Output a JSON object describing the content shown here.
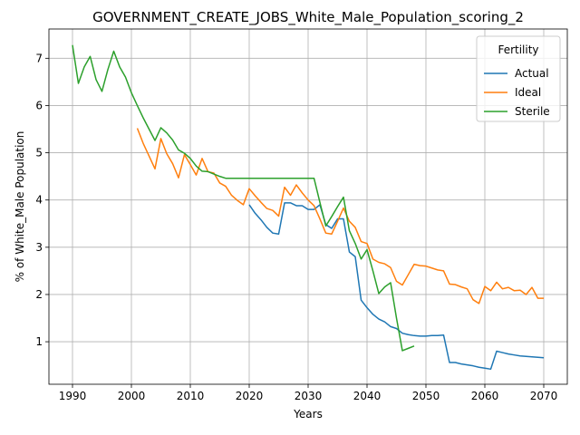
{
  "chart_data": {
    "type": "line",
    "title": "GOVERNMENT_CREATE_JOBS_White_Male_Population_scoring_2",
    "xlabel": "Years",
    "ylabel": "% of White_Male Population",
    "xlim": [
      1986,
      2074
    ],
    "ylim": [
      0.1,
      7.62
    ],
    "xticks": [
      1990,
      2000,
      2010,
      2020,
      2030,
      2040,
      2050,
      2060,
      2070
    ],
    "yticks": [
      1,
      2,
      3,
      4,
      5,
      6,
      7
    ],
    "grid": true,
    "legend": {
      "title": "Fertility",
      "placement": "top-right"
    },
    "series": [
      {
        "name": "Actual",
        "color": "#1f77b4",
        "x": [
          2020,
          2021,
          2022,
          2023,
          2024,
          2025,
          2026,
          2027,
          2028,
          2029,
          2030,
          2031,
          2032,
          2033,
          2034,
          2035,
          2036,
          2037,
          2038,
          2039,
          2040,
          2041,
          2042,
          2043,
          2044,
          2045,
          2046,
          2047,
          2048,
          2049,
          2050,
          2051,
          2052,
          2053,
          2054,
          2055,
          2056,
          2057,
          2058,
          2059,
          2060,
          2061,
          2062,
          2063,
          2064,
          2065,
          2066,
          2067,
          2068,
          2069,
          2070
        ],
        "y": [
          3.9,
          3.72,
          3.58,
          3.42,
          3.3,
          3.28,
          3.94,
          3.94,
          3.88,
          3.88,
          3.8,
          3.8,
          3.9,
          3.48,
          3.4,
          3.6,
          3.6,
          2.9,
          2.8,
          1.88,
          1.72,
          1.58,
          1.48,
          1.42,
          1.32,
          1.28,
          1.18,
          1.15,
          1.13,
          1.12,
          1.12,
          1.13,
          1.13,
          1.14,
          0.56,
          0.56,
          0.53,
          0.51,
          0.49,
          0.46,
          0.44,
          0.42,
          0.8,
          0.77,
          0.74,
          0.72,
          0.7,
          0.69,
          0.68,
          0.67,
          0.66
        ]
      },
      {
        "name": "Ideal",
        "color": "#ff7f0e",
        "x": [
          2001,
          2002,
          2003,
          2004,
          2005,
          2006,
          2007,
          2008,
          2009,
          2010,
          2011,
          2012,
          2013,
          2014,
          2015,
          2016,
          2017,
          2018,
          2019,
          2020,
          2021,
          2022,
          2023,
          2024,
          2025,
          2026,
          2027,
          2028,
          2029,
          2030,
          2031,
          2032,
          2033,
          2034,
          2035,
          2036,
          2037,
          2038,
          2039,
          2040,
          2041,
          2042,
          2043,
          2044,
          2045,
          2046,
          2047,
          2048,
          2049,
          2050,
          2051,
          2052,
          2053,
          2054,
          2055,
          2056,
          2057,
          2058,
          2059,
          2060,
          2061,
          2062,
          2063,
          2064,
          2065,
          2066,
          2067,
          2068,
          2069,
          2070
        ],
        "y": [
          5.52,
          5.2,
          4.93,
          4.66,
          5.3,
          4.98,
          4.77,
          4.47,
          4.96,
          4.75,
          4.53,
          4.88,
          4.6,
          4.57,
          4.36,
          4.29,
          4.1,
          3.99,
          3.9,
          4.24,
          4.09,
          3.95,
          3.82,
          3.78,
          3.66,
          4.27,
          4.1,
          4.32,
          4.15,
          4.0,
          3.88,
          3.6,
          3.3,
          3.28,
          3.55,
          3.83,
          3.55,
          3.42,
          3.12,
          3.08,
          2.75,
          2.68,
          2.65,
          2.57,
          2.28,
          2.2,
          2.42,
          2.64,
          2.61,
          2.6,
          2.56,
          2.52,
          2.5,
          2.22,
          2.21,
          2.16,
          2.12,
          1.89,
          1.81,
          2.17,
          2.08,
          2.26,
          2.12,
          2.15,
          2.08,
          2.09,
          2.0,
          2.15,
          1.92,
          1.92
        ]
      },
      {
        "name": "Sterile",
        "color": "#2ca02c",
        "x": [
          1990,
          1991,
          1992,
          1993,
          1994,
          1995,
          1996,
          1997,
          1998,
          1999,
          2000,
          2001,
          2002,
          2003,
          2004,
          2005,
          2006,
          2007,
          2008,
          2009,
          2010,
          2011,
          2012,
          2013,
          2014,
          2015,
          2016,
          2017,
          2018,
          2019,
          2020,
          2021,
          2022,
          2023,
          2024,
          2025,
          2026,
          2027,
          2028,
          2029,
          2030,
          2031,
          2032,
          2033,
          2034,
          2035,
          2036,
          2037,
          2038,
          2039,
          2040,
          2041,
          2042,
          2043,
          2044,
          2045,
          2046,
          2047,
          2048
        ],
        "y": [
          7.28,
          6.47,
          6.82,
          7.04,
          6.55,
          6.3,
          6.76,
          7.15,
          6.82,
          6.6,
          6.27,
          6.0,
          5.74,
          5.5,
          5.26,
          5.53,
          5.42,
          5.27,
          5.06,
          4.99,
          4.88,
          4.72,
          4.61,
          4.6,
          4.55,
          4.5,
          4.46,
          4.46,
          4.46,
          4.46,
          4.46,
          4.46,
          4.46,
          4.46,
          4.46,
          4.46,
          4.46,
          4.46,
          4.46,
          4.46,
          4.46,
          4.46,
          3.95,
          3.45,
          3.65,
          3.86,
          4.06,
          3.35,
          3.08,
          2.75,
          2.95,
          2.5,
          2.02,
          2.16,
          2.25,
          1.5,
          0.81,
          0.86,
          0.91
        ]
      }
    ]
  }
}
